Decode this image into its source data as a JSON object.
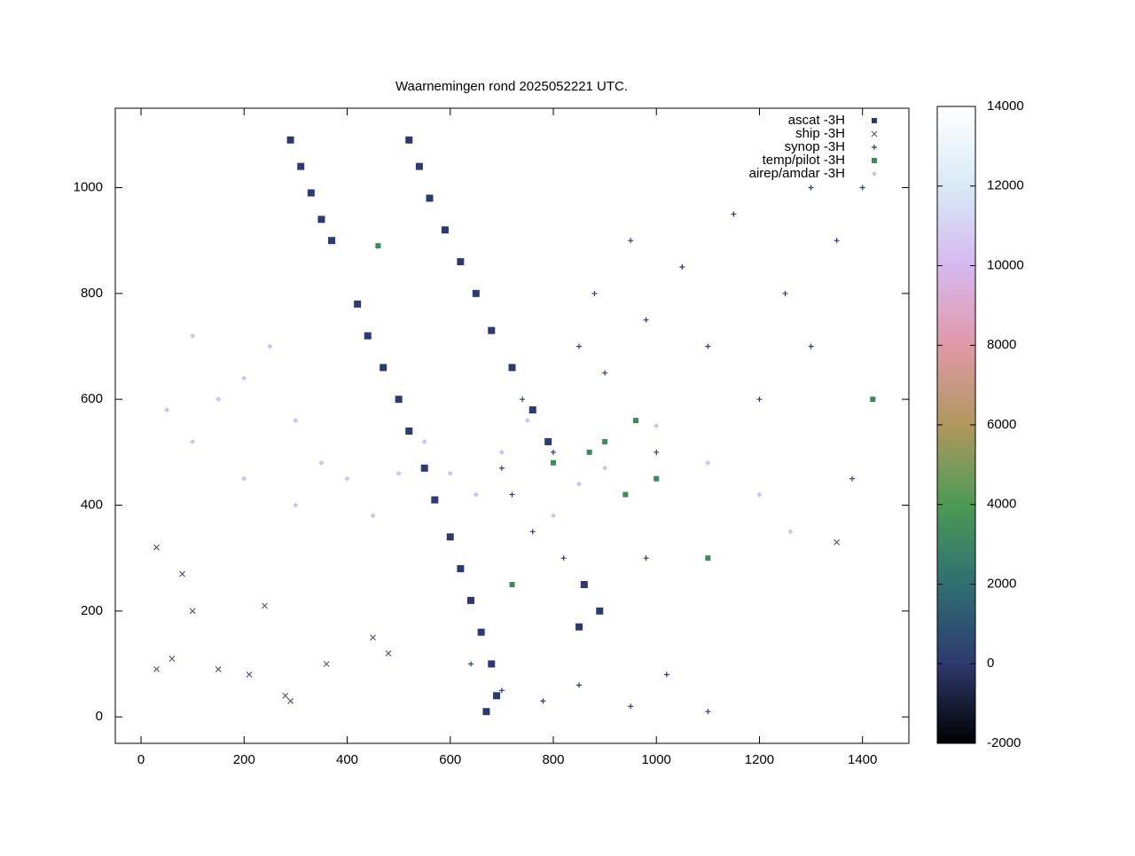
{
  "chart_data": {
    "type": "scatter",
    "title": "Waarnemingen rond 2025052221 UTC.",
    "xlim": [
      -50,
      1490
    ],
    "ylim": [
      -50,
      1150
    ],
    "xticks": [
      0,
      200,
      400,
      600,
      800,
      1000,
      1200,
      1400
    ],
    "yticks": [
      0,
      200,
      400,
      600,
      800,
      1000
    ],
    "legend": "upper right",
    "colorbar": {
      "lim": [
        -2000,
        14000
      ],
      "ticks": [
        -2000,
        0,
        2000,
        4000,
        6000,
        8000,
        10000,
        12000,
        14000
      ]
    },
    "series": [
      {
        "name": "ascat -3H",
        "marker": "square",
        "color": "#2e3a6e",
        "x": [
          290,
          310,
          330,
          350,
          370,
          520,
          540,
          560,
          590,
          620,
          650,
          680,
          720,
          760,
          790,
          420,
          440,
          470,
          500,
          520,
          550,
          570,
          600,
          620,
          640,
          660,
          680,
          690,
          670,
          860,
          890,
          850
        ],
        "y": [
          1090,
          1040,
          990,
          940,
          900,
          1090,
          1040,
          980,
          920,
          860,
          800,
          730,
          660,
          580,
          520,
          780,
          720,
          660,
          600,
          540,
          470,
          410,
          340,
          280,
          220,
          160,
          100,
          40,
          10,
          250,
          200,
          170
        ]
      },
      {
        "name": "ship -3H",
        "marker": "x",
        "color": "#5a5a70",
        "x": [
          30,
          30,
          60,
          80,
          100,
          150,
          210,
          240,
          280,
          290,
          360,
          450,
          480,
          1350
        ],
        "y": [
          320,
          90,
          110,
          270,
          200,
          90,
          80,
          210,
          40,
          30,
          100,
          150,
          120,
          330
        ]
      },
      {
        "name": "synop -3H",
        "marker": "plus",
        "color": "#2e3a6e",
        "x": [
          700,
          720,
          740,
          760,
          800,
          820,
          850,
          880,
          900,
          950,
          980,
          1000,
          1050,
          1100,
          1150,
          1200,
          1250,
          1300,
          1350,
          1400,
          1420,
          1380,
          700,
          780,
          850,
          950,
          1020,
          1100,
          640,
          980,
          1300
        ],
        "y": [
          470,
          420,
          600,
          350,
          500,
          300,
          700,
          800,
          650,
          900,
          750,
          500,
          850,
          700,
          950,
          600,
          800,
          700,
          900,
          1000,
          600,
          450,
          50,
          30,
          60,
          20,
          80,
          10,
          100,
          300,
          1000
        ]
      },
      {
        "name": "temp/pilot -3H",
        "marker": "square",
        "color": "#3f8a5a",
        "x": [
          870,
          900,
          940,
          960,
          1000,
          1420,
          1100,
          800,
          720,
          460
        ],
        "y": [
          500,
          520,
          420,
          560,
          450,
          600,
          300,
          480,
          250,
          890
        ]
      },
      {
        "name": "airep/amdar -3H",
        "marker": "diamond",
        "color": "#c9c4ec",
        "x": [
          50,
          100,
          150,
          200,
          250,
          300,
          350,
          400,
          450,
          500,
          550,
          600,
          650,
          700,
          750,
          800,
          850,
          900,
          1000,
          1100,
          1200,
          1260,
          200,
          300,
          100
        ],
        "y": [
          580,
          520,
          600,
          640,
          700,
          560,
          480,
          450,
          380,
          460,
          520,
          460,
          420,
          500,
          560,
          380,
          440,
          470,
          550,
          480,
          420,
          350,
          450,
          400,
          720
        ]
      }
    ]
  }
}
